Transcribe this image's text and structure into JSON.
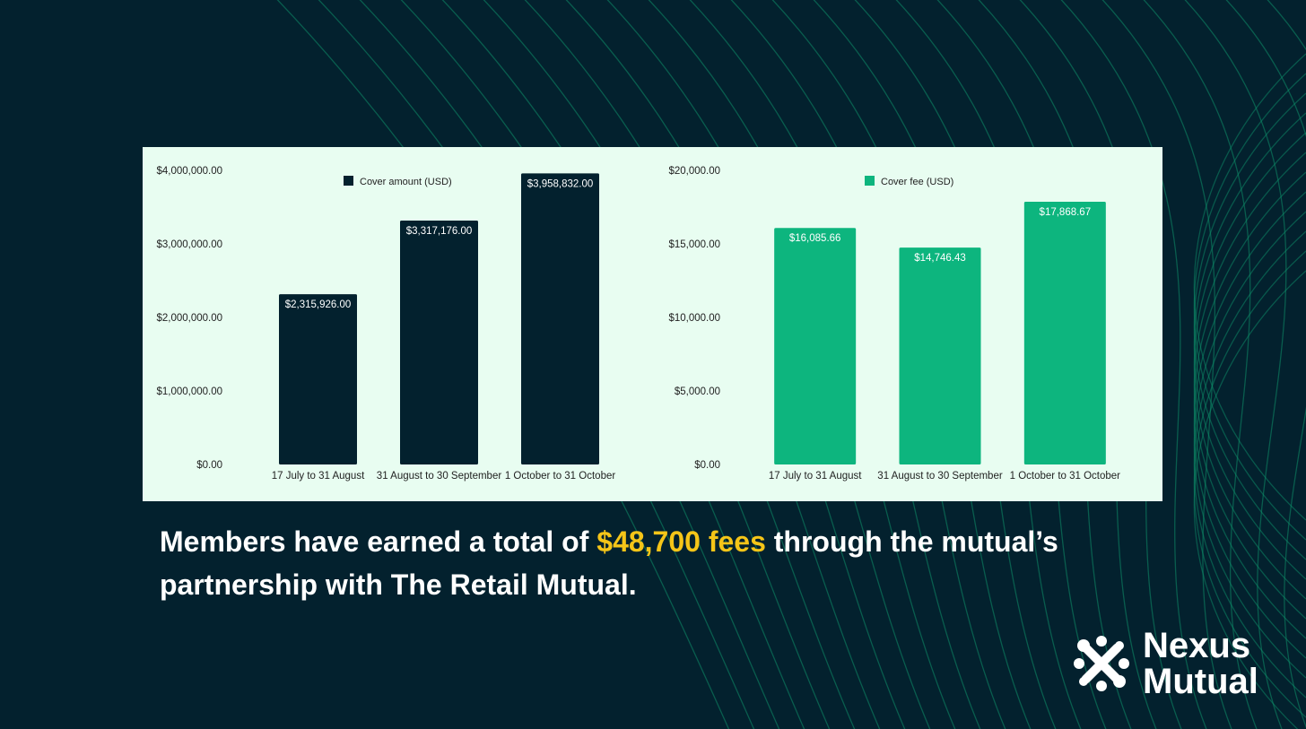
{
  "colors": {
    "background": "#03212e",
    "panel": "#e8fdf1",
    "cover_amount_bar": "#03212e",
    "cover_fee_bar": "#0db57e",
    "highlight": "#f5c518",
    "wave": "#0e8f69"
  },
  "caption": {
    "before": "Members have earned a total of ",
    "highlight": "$48,700 fees",
    "after": " through the mutual’s partnership with The Retail Mutual."
  },
  "logo": {
    "line1": "Nexus",
    "line2": "Mutual",
    "icon": "nexus-mutual-logo-icon"
  },
  "chart_data": [
    {
      "type": "bar",
      "categories": [
        "17 July to 31 August",
        "31 August to 30 September",
        "1 October to 31 October"
      ],
      "series": [
        {
          "name": "Cover amount (USD)",
          "values": [
            2315926.0,
            3317176.0,
            3958832.0
          ]
        }
      ],
      "data_labels": [
        "$2,315,926.00",
        "$3,317,176.00",
        "$3,958,832.00"
      ],
      "yticks": [
        0,
        1000000,
        2000000,
        3000000,
        4000000
      ],
      "ytick_labels": [
        "$0.00",
        "$1,000,000.00",
        "$2,000,000.00",
        "$3,000,000.00",
        "$4,000,000.00"
      ],
      "ylim": [
        0,
        4000000
      ],
      "legend": "top",
      "grid": false
    },
    {
      "type": "bar",
      "categories": [
        "17 July to 31 August",
        "31 August to 30 September",
        "1 October to 31 October"
      ],
      "series": [
        {
          "name": "Cover fee (USD)",
          "values": [
            16085.66,
            14746.43,
            17868.67
          ]
        }
      ],
      "data_labels": [
        "$16,085.66",
        "$14,746.43",
        "$17,868.67"
      ],
      "yticks": [
        0,
        5000,
        10000,
        15000,
        20000
      ],
      "ytick_labels": [
        "$0.00",
        "$5,000.00",
        "$10,000.00",
        "$15,000.00",
        "$20,000.00"
      ],
      "ylim": [
        0,
        20000
      ],
      "legend": "top",
      "grid": false
    }
  ]
}
